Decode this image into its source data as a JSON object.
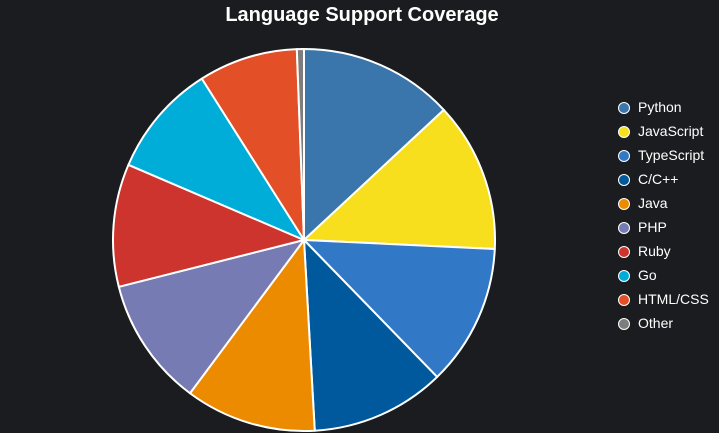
{
  "chart_data": {
    "type": "pie",
    "title": "Language Support Coverage",
    "legend_position": "right",
    "slice_border_color": "#ffffff",
    "series": [
      {
        "name": "Python",
        "value": 13.1,
        "color": "#3a76ab"
      },
      {
        "name": "JavaScript",
        "value": 12.7,
        "color": "#f7df1e"
      },
      {
        "name": "TypeScript",
        "value": 12.0,
        "color": "#3178c6"
      },
      {
        "name": "C/C++",
        "value": 11.4,
        "color": "#00599c"
      },
      {
        "name": "Java",
        "value": 11.1,
        "color": "#ed8b00"
      },
      {
        "name": "PHP",
        "value": 10.9,
        "color": "#777bb3"
      },
      {
        "name": "Ruby",
        "value": 10.4,
        "color": "#cc342d"
      },
      {
        "name": "Go",
        "value": 9.6,
        "color": "#00add8"
      },
      {
        "name": "HTML/CSS",
        "value": 8.4,
        "color": "#e34f26"
      },
      {
        "name": "Other",
        "value": 0.6,
        "color": "#7d7d7d"
      }
    ]
  }
}
